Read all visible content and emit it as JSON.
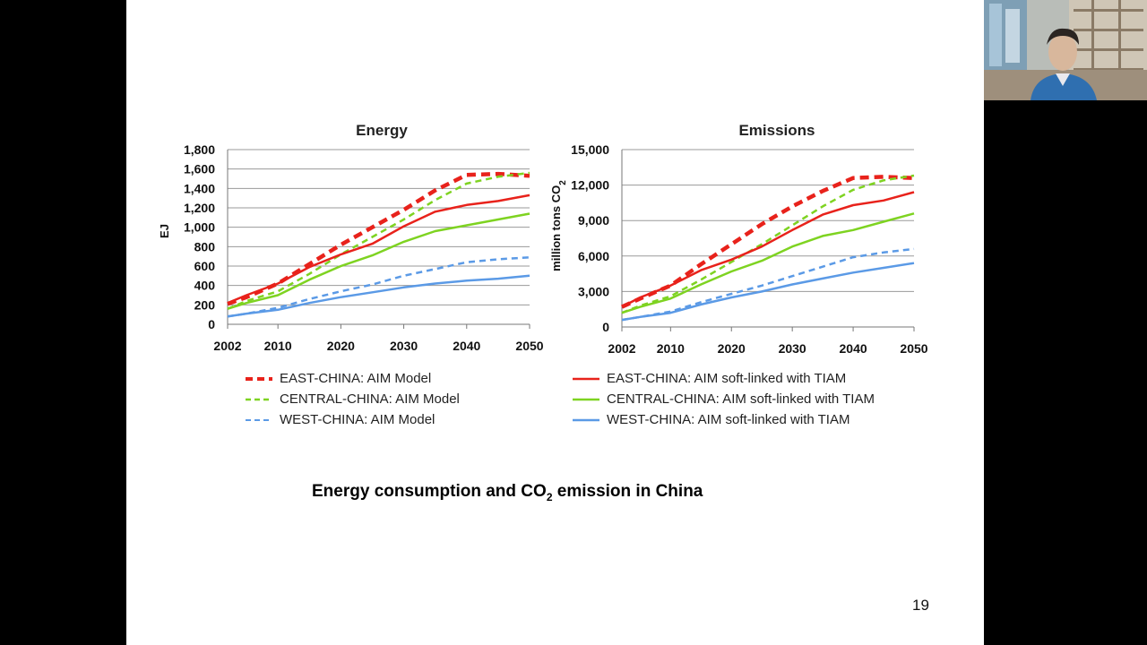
{
  "slide": {
    "caption_pre": "Energy consumption and CO",
    "caption_sub": "2",
    "caption_post": " emission in China",
    "page_number": "19"
  },
  "video": {
    "icon": "participant-video"
  },
  "legend": {
    "left": [
      "EAST-CHINA: AIM Model",
      "CENTRAL-CHINA: AIM Model",
      "WEST-CHINA: AIM Model"
    ],
    "right": [
      "EAST-CHINA: AIM soft-linked with TIAM",
      "CENTRAL-CHINA: AIM soft-linked with TIAM",
      "WEST-CHINA: AIM soft-linked with TIAM"
    ]
  },
  "colors": {
    "east": "#e8221b",
    "central": "#7ed321",
    "west": "#5b9ae6",
    "grid": "#9a9a9a"
  },
  "chart_data": [
    {
      "type": "line",
      "title": "Energy",
      "ylabel": "EJ",
      "xlabel": "",
      "x_ticks": [
        "2002",
        "2010",
        "2020",
        "2030",
        "2040",
        "2050"
      ],
      "y_ticks": [
        "0",
        "200",
        "400",
        "600",
        "800",
        "1,000",
        "1,200",
        "1,400",
        "1,600",
        "1,800"
      ],
      "ylim": [
        0,
        1800
      ],
      "xlim": [
        2002,
        2050
      ],
      "grid": true,
      "series": [
        {
          "name": "EAST-CHINA: AIM Model",
          "style": "dashed",
          "color": "east",
          "x": [
            2002,
            2005,
            2010,
            2015,
            2020,
            2025,
            2030,
            2035,
            2040,
            2045,
            2050
          ],
          "y": [
            210,
            280,
            420,
            620,
            820,
            1000,
            1180,
            1380,
            1540,
            1550,
            1530
          ]
        },
        {
          "name": "CENTRAL-CHINA: AIM Model",
          "style": "dashed",
          "color": "central",
          "x": [
            2002,
            2005,
            2010,
            2015,
            2020,
            2025,
            2030,
            2035,
            2040,
            2045,
            2050
          ],
          "y": [
            160,
            240,
            340,
            520,
            720,
            900,
            1080,
            1280,
            1450,
            1520,
            1560
          ]
        },
        {
          "name": "WEST-CHINA: AIM Model",
          "style": "dashed",
          "color": "west",
          "x": [
            2002,
            2005,
            2010,
            2015,
            2020,
            2025,
            2030,
            2035,
            2040,
            2045,
            2050
          ],
          "y": [
            80,
            110,
            170,
            260,
            340,
            410,
            500,
            570,
            640,
            670,
            690
          ]
        },
        {
          "name": "EAST-CHINA: AIM soft-linked with TIAM",
          "style": "solid",
          "color": "east",
          "x": [
            2002,
            2005,
            2010,
            2015,
            2020,
            2025,
            2030,
            2035,
            2040,
            2045,
            2050
          ],
          "y": [
            220,
            300,
            420,
            590,
            720,
            830,
            1010,
            1160,
            1230,
            1270,
            1330
          ]
        },
        {
          "name": "CENTRAL-CHINA: AIM soft-linked with TIAM",
          "style": "solid",
          "color": "central",
          "x": [
            2002,
            2005,
            2010,
            2015,
            2020,
            2025,
            2030,
            2035,
            2040,
            2045,
            2050
          ],
          "y": [
            160,
            220,
            300,
            460,
            600,
            710,
            850,
            960,
            1020,
            1080,
            1140
          ]
        },
        {
          "name": "WEST-CHINA: AIM soft-linked with TIAM",
          "style": "solid",
          "color": "west",
          "x": [
            2002,
            2005,
            2010,
            2015,
            2020,
            2025,
            2030,
            2035,
            2040,
            2045,
            2050
          ],
          "y": [
            80,
            110,
            150,
            220,
            280,
            330,
            380,
            420,
            450,
            470,
            500
          ]
        }
      ]
    },
    {
      "type": "line",
      "title": "Emissions",
      "ylabel_pre": "million  tons  CO",
      "ylabel_sub": "2",
      "xlabel": "",
      "x_ticks": [
        "2002",
        "2010",
        "2020",
        "2030",
        "2040",
        "2050"
      ],
      "y_ticks": [
        "0",
        "3,000",
        "6,000",
        "9,000",
        "12,000",
        "15,000"
      ],
      "ylim": [
        0,
        15000
      ],
      "xlim": [
        2002,
        2050
      ],
      "grid": true,
      "series": [
        {
          "name": "EAST-CHINA: AIM Model",
          "style": "dashed",
          "color": "east",
          "x": [
            2002,
            2005,
            2010,
            2015,
            2020,
            2025,
            2030,
            2035,
            2040,
            2045,
            2050
          ],
          "y": [
            1700,
            2400,
            3500,
            5300,
            7000,
            8700,
            10200,
            11500,
            12600,
            12700,
            12600
          ]
        },
        {
          "name": "CENTRAL-CHINA: AIM Model",
          "style": "dashed",
          "color": "central",
          "x": [
            2002,
            2005,
            2010,
            2015,
            2020,
            2025,
            2030,
            2035,
            2040,
            2045,
            2050
          ],
          "y": [
            1200,
            1800,
            2600,
            4000,
            5500,
            7000,
            8600,
            10200,
            11600,
            12400,
            12800
          ]
        },
        {
          "name": "WEST-CHINA: AIM Model",
          "style": "dashed",
          "color": "west",
          "x": [
            2002,
            2005,
            2010,
            2015,
            2020,
            2025,
            2030,
            2035,
            2040,
            2045,
            2050
          ],
          "y": [
            600,
            850,
            1300,
            2100,
            2800,
            3500,
            4300,
            5100,
            5900,
            6300,
            6600
          ]
        },
        {
          "name": "EAST-CHINA: AIM soft-linked with TIAM",
          "style": "solid",
          "color": "east",
          "x": [
            2002,
            2005,
            2010,
            2015,
            2020,
            2025,
            2030,
            2035,
            2040,
            2045,
            2050
          ],
          "y": [
            1700,
            2500,
            3500,
            4800,
            5700,
            6800,
            8200,
            9500,
            10300,
            10700,
            11400
          ]
        },
        {
          "name": "CENTRAL-CHINA: AIM soft-linked with TIAM",
          "style": "solid",
          "color": "central",
          "x": [
            2002,
            2005,
            2010,
            2015,
            2020,
            2025,
            2030,
            2035,
            2040,
            2045,
            2050
          ],
          "y": [
            1200,
            1700,
            2400,
            3600,
            4700,
            5600,
            6800,
            7700,
            8200,
            8900,
            9600
          ]
        },
        {
          "name": "WEST-CHINA: AIM soft-linked with TIAM",
          "style": "solid",
          "color": "west",
          "x": [
            2002,
            2005,
            2010,
            2015,
            2020,
            2025,
            2030,
            2035,
            2040,
            2045,
            2050
          ],
          "y": [
            600,
            850,
            1200,
            1900,
            2500,
            3000,
            3600,
            4100,
            4600,
            5000,
            5400
          ]
        }
      ]
    }
  ]
}
